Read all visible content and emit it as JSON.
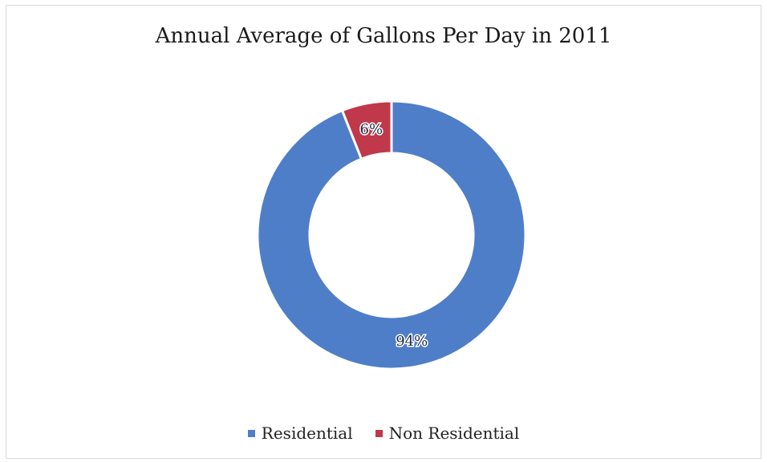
{
  "chart_data": {
    "type": "donut",
    "title": "Annual Average of Gallons Per Day in 2011",
    "categories": [
      "Residential",
      "Non Residential"
    ],
    "values": [
      94,
      6
    ],
    "labels": [
      "94%",
      "6%"
    ],
    "colors": [
      "#4f7ec9",
      "#c0394b"
    ],
    "legend_position": "bottom",
    "start_angle_deg": 0,
    "direction": "clockwise"
  }
}
